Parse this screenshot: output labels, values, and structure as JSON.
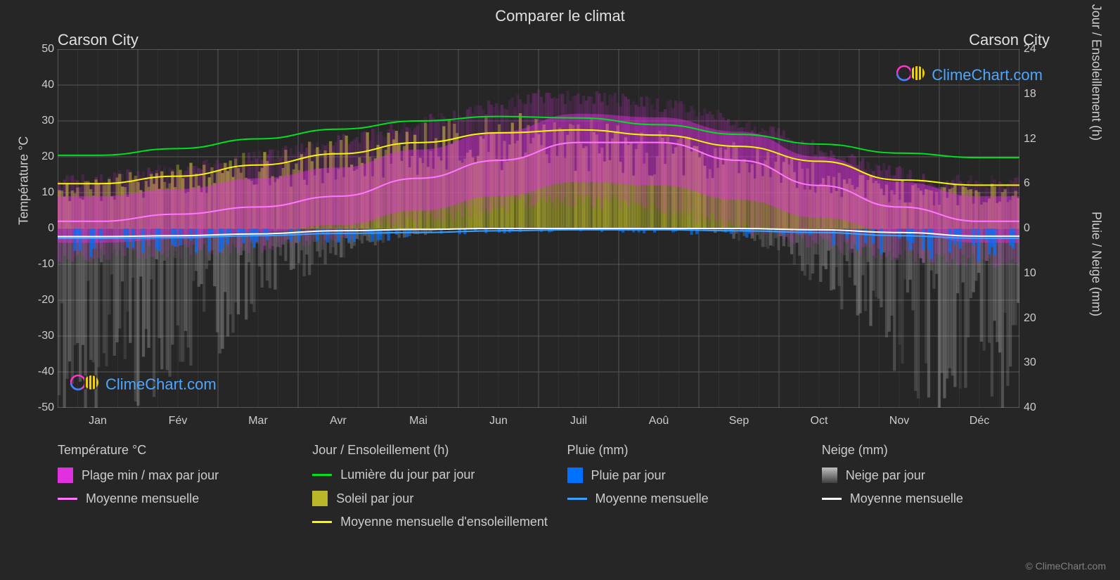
{
  "title": "Comparer le climat",
  "city_left": "Carson City",
  "city_right": "Carson City",
  "watermark_text": "ClimeChart.com",
  "credit": "© ClimeChart.com",
  "chart": {
    "type": "climate-multi",
    "background_color": "#262626",
    "grid_color": "#555555",
    "plot_border_color": "#888888",
    "months": [
      "Jan",
      "Fév",
      "Mar",
      "Avr",
      "Mai",
      "Jun",
      "Juil",
      "Aoû",
      "Sep",
      "Oct",
      "Nov",
      "Déc"
    ],
    "y_left": {
      "label": "Température °C",
      "min": -50,
      "max": 50,
      "ticks": [
        -50,
        -40,
        -30,
        -20,
        -10,
        0,
        10,
        20,
        30,
        40,
        50
      ]
    },
    "y_right_top": {
      "label": "Jour / Ensoleillement (h)",
      "min": 0,
      "max": 24,
      "ticks": [
        0,
        6,
        12,
        18,
        24
      ]
    },
    "y_right_bottom": {
      "label": "Pluie / Neige (mm)",
      "min": 0,
      "max": 40,
      "ticks": [
        0,
        10,
        20,
        30,
        40
      ]
    },
    "series": {
      "temp_range": {
        "label": "Plage min / max par jour",
        "fill_color": "#e030e0",
        "opacity": 0.6,
        "min": [
          -4,
          -3,
          -1,
          1,
          5,
          9,
          13,
          12,
          8,
          3,
          -1,
          -4
        ],
        "max": [
          9,
          11,
          14,
          17,
          22,
          27,
          32,
          31,
          27,
          20,
          13,
          9
        ],
        "min_scatter": [
          -8,
          -7,
          -6,
          -4,
          0,
          4,
          8,
          7,
          3,
          -2,
          -6,
          -9
        ],
        "max_scatter": [
          13,
          15,
          18,
          22,
          27,
          32,
          37,
          36,
          33,
          26,
          18,
          13
        ]
      },
      "temp_mean": {
        "label": "Moyenne mensuelle",
        "line_color": "#ff77ff",
        "line_width": 2,
        "values": [
          2,
          4,
          6,
          9,
          14,
          19,
          24,
          24,
          19,
          12,
          6,
          2
        ]
      },
      "daylight": {
        "label": "Lumière du jour par jour",
        "line_color": "#00e020",
        "line_width": 2,
        "values_h": [
          9.8,
          10.7,
          12,
          13.3,
          14.4,
          15,
          14.8,
          13.9,
          12.6,
          11.3,
          10.1,
          9.5
        ]
      },
      "sunshine_area": {
        "label": "Soleil par jour",
        "fill_color": "#bab82a",
        "opacity": 0.65,
        "values_h": [
          5.5,
          6.5,
          8,
          9.5,
          11,
          12.5,
          13,
          12,
          10.5,
          8.5,
          6,
          5
        ]
      },
      "sunshine_mean": {
        "label": "Moyenne mensuelle d'ensoleillement",
        "line_color": "#f8f800",
        "line_width": 2,
        "values_h": [
          6,
          7,
          8.5,
          10,
          11.5,
          12.8,
          13.2,
          12.5,
          11,
          9,
          6.5,
          5.8
        ]
      },
      "rain_daily": {
        "label": "Pluie par jour",
        "fill_color": "#0070ff",
        "opacity": 0.7,
        "values_mm": [
          2.5,
          2.3,
          1.8,
          1.2,
          1.0,
          0.5,
          0.3,
          0.3,
          0.5,
          1.0,
          1.8,
          2.5
        ]
      },
      "rain_mean": {
        "label": "Moyenne mensuelle",
        "line_color": "#3aa0ff",
        "line_width": 2,
        "values_mm": [
          2.2,
          2.0,
          1.6,
          1.1,
          0.9,
          0.5,
          0.3,
          0.3,
          0.5,
          0.9,
          1.6,
          2.2
        ]
      },
      "snow_daily": {
        "label": "Neige par jour",
        "fill_color": "#c0c0c0",
        "opacity": 0.35,
        "values_mm": [
          25,
          22,
          15,
          6,
          2,
          0,
          0,
          0,
          0,
          3,
          12,
          24
        ]
      },
      "snow_mean": {
        "label": "Moyenne mensuelle",
        "line_color": "#ffffff",
        "line_width": 2,
        "values_mm": [
          1.8,
          1.6,
          1.2,
          0.5,
          0.2,
          0,
          0,
          0,
          0,
          0.3,
          0.9,
          1.7
        ]
      }
    }
  },
  "legend": {
    "col1": {
      "header": "Température °C",
      "items": [
        {
          "type": "box",
          "color": "#e030e0",
          "label": "Plage min / max par jour"
        },
        {
          "type": "line",
          "color": "#ff77ff",
          "label": "Moyenne mensuelle"
        }
      ]
    },
    "col2": {
      "header": "Jour / Ensoleillement (h)",
      "items": [
        {
          "type": "line",
          "color": "#00e020",
          "label": "Lumière du jour par jour"
        },
        {
          "type": "box",
          "color": "#bab82a",
          "label": "Soleil par jour"
        },
        {
          "type": "line",
          "color": "#f8f800",
          "label": "Moyenne mensuelle d'ensoleillement"
        }
      ]
    },
    "col3": {
      "header": "Pluie (mm)",
      "items": [
        {
          "type": "box",
          "color": "#0070ff",
          "label": "Pluie par jour"
        },
        {
          "type": "line",
          "color": "#3aa0ff",
          "label": "Moyenne mensuelle"
        }
      ]
    },
    "col4": {
      "header": "Neige (mm)",
      "items": [
        {
          "type": "box-grad",
          "color": "#c0c0c0",
          "label": "Neige par jour"
        },
        {
          "type": "line",
          "color": "#ffffff",
          "label": "Moyenne mensuelle"
        }
      ]
    }
  }
}
